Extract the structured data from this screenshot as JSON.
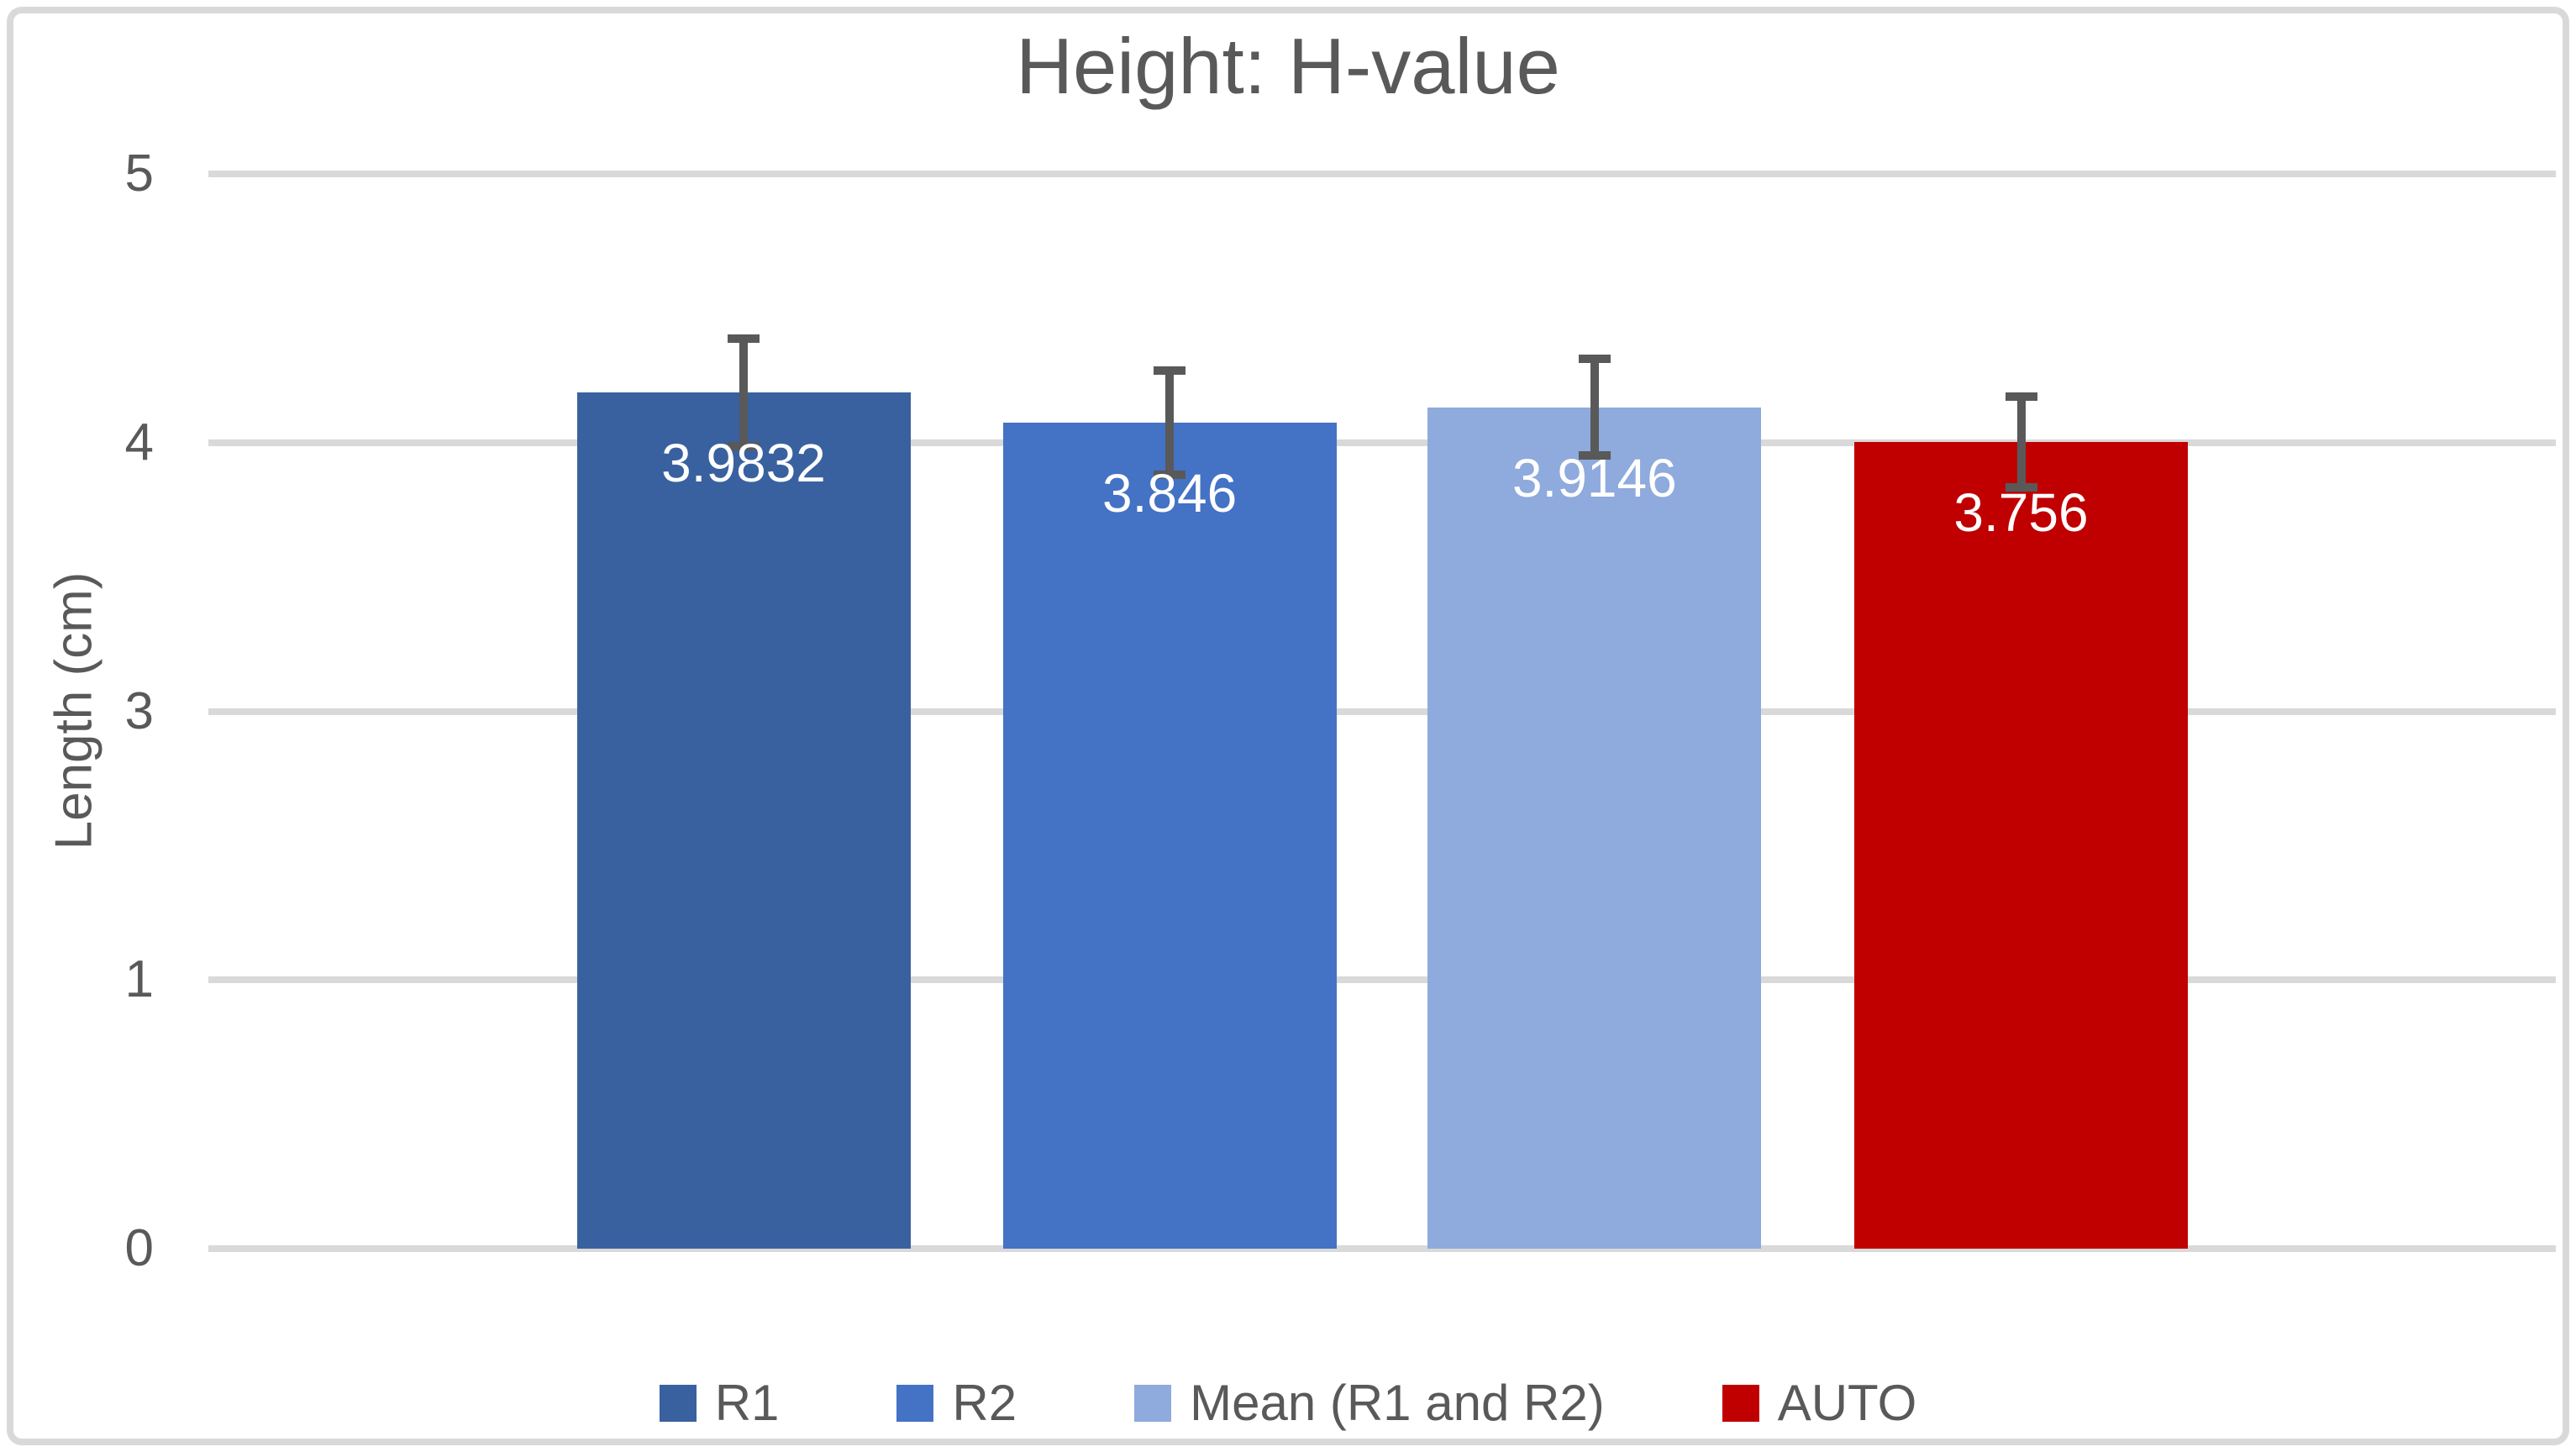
{
  "chart": {
    "title": "Height: H-value",
    "y_axis_label": "Length (cm)"
  },
  "chart_data": {
    "type": "bar",
    "title": "Height: H-value",
    "xlabel": "",
    "ylabel": "Length (cm)",
    "categories": [
      "R1",
      "R2",
      "Mean (R1 and R2)",
      "AUTO"
    ],
    "values": [
      3.9832,
      3.846,
      3.9146,
      3.756
    ],
    "data_labels": [
      "3.9832",
      "3.846",
      "3.9146",
      "3.756"
    ],
    "series_colors": [
      "#39619F",
      "#4472C4",
      "#8FAADC",
      "#C00000"
    ],
    "y_ticks_top_to_bottom": [
      "5",
      "4",
      "3",
      "1",
      "0"
    ],
    "grid": true,
    "legend_position": "bottom",
    "legend_entries": [
      "R1",
      "R2",
      "Mean (R1 and R2)",
      "AUTO"
    ],
    "error_bars": {
      "visible": true,
      "caps": "both-ends",
      "half_length_axis_units": [
        0.2,
        0.195,
        0.18,
        0.17
      ]
    },
    "render_geometry": {
      "axis_span_units": 4,
      "bar_top_axis_units": [
        3.188,
        3.074,
        3.131,
        3.002
      ],
      "bar_center_pct": [
        22.8,
        40.95,
        59.05,
        77.22
      ],
      "bar_width_pct": 14.21
    },
    "styles": {
      "text_color": "#595959",
      "gridline_color": "#D9D9D9",
      "error_bar_color": "#595959",
      "data_label_color": "#FFFFFF",
      "frame_border_color": "#D9D9D9",
      "background": "#FFFFFF"
    }
  }
}
